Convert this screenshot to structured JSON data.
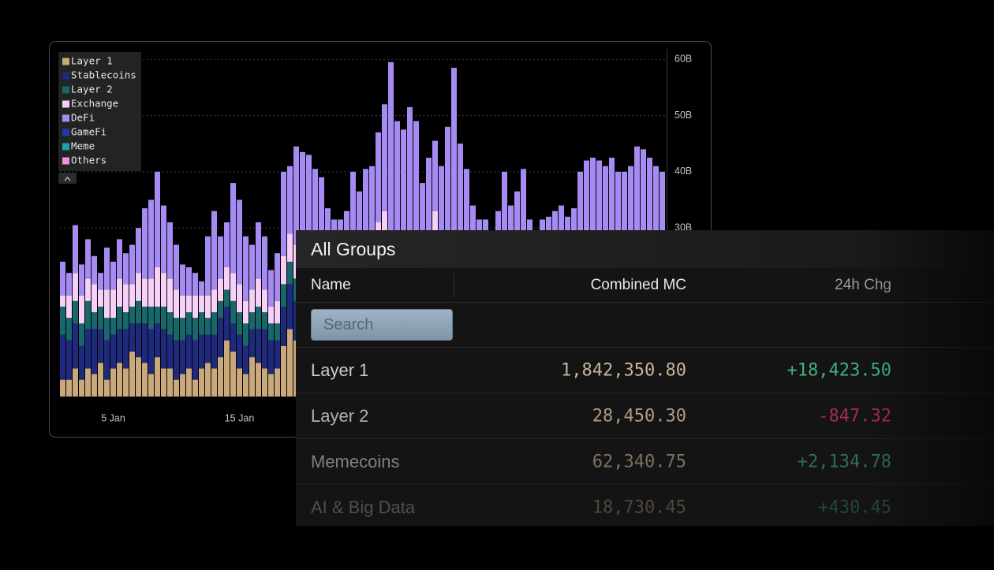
{
  "chart_data": {
    "type": "bar",
    "stacked": true,
    "legend": "upper left",
    "grid": true,
    "ylim": [
      0,
      62
    ],
    "yticks": [
      {
        "value": 30,
        "label": "30B"
      },
      {
        "value": 40,
        "label": "40B"
      },
      {
        "value": 50,
        "label": "50B"
      },
      {
        "value": 60,
        "label": "60B"
      }
    ],
    "categories": [
      null,
      null,
      null,
      null,
      null,
      null,
      null,
      null,
      "5 Jan",
      null,
      null,
      null,
      null,
      null,
      null,
      null,
      null,
      null,
      null,
      null,
      null,
      null,
      null,
      null,
      null,
      null,
      null,
      null,
      "15 Jan",
      null,
      null,
      null,
      null,
      null,
      null,
      null,
      null,
      null,
      null,
      null,
      null,
      null,
      null,
      null,
      null,
      null,
      null,
      null,
      null,
      null,
      null,
      null,
      null,
      null,
      null,
      null,
      null,
      null,
      null,
      null,
      null,
      null,
      null,
      null,
      null,
      null,
      null,
      null,
      null,
      null,
      null,
      null,
      null,
      null,
      null,
      null,
      null,
      null,
      null,
      null,
      null,
      null,
      null,
      null,
      null,
      null,
      null,
      null,
      null,
      null,
      null,
      null,
      null,
      null,
      null,
      null
    ],
    "series": [
      {
        "name": "Layer 1",
        "color": "#c9a97c",
        "values": [
          3,
          3,
          5,
          3,
          5,
          4,
          6,
          3,
          5,
          6,
          5,
          8,
          7,
          6,
          4,
          7,
          5,
          5,
          3,
          4,
          5,
          3,
          5,
          6,
          5,
          7,
          10,
          8,
          5,
          4,
          7,
          6,
          5,
          4,
          5,
          9,
          12,
          10,
          8,
          9,
          8,
          7,
          7,
          6,
          6,
          8,
          7,
          8,
          9,
          9,
          10,
          12,
          9,
          10,
          11,
          9,
          8,
          9,
          10,
          11,
          8,
          7,
          6,
          6,
          6,
          5,
          7,
          6,
          8,
          7,
          6,
          6,
          5,
          6,
          6,
          5,
          6,
          7,
          8,
          8,
          7,
          8,
          9,
          8,
          8,
          7,
          8,
          9,
          10,
          9,
          8,
          8,
          9,
          8,
          7,
          8
        ]
      },
      {
        "name": "Stablecoins",
        "color": "#1f2a7c",
        "values": [
          8,
          7,
          8,
          6,
          7,
          8,
          6,
          7,
          6,
          6,
          7,
          5,
          6,
          7,
          8,
          6,
          7,
          6,
          7,
          6,
          6,
          7,
          6,
          5,
          6,
          7,
          6,
          5,
          6,
          5,
          5,
          6,
          7,
          6,
          5,
          7,
          8,
          7,
          6,
          7,
          6,
          5,
          5,
          6,
          6,
          7,
          7,
          6,
          8,
          9,
          9,
          10,
          8,
          7,
          8,
          9,
          7,
          7,
          8,
          9,
          7,
          6,
          6,
          5,
          6,
          5,
          6,
          6,
          7,
          6,
          5,
          5,
          6,
          6,
          5,
          6,
          6,
          6,
          7,
          6,
          6,
          7,
          7,
          7,
          6,
          6,
          7,
          7,
          7,
          6,
          7,
          7,
          6,
          6,
          6,
          6
        ]
      },
      {
        "name": "Layer 2",
        "color": "#17676b",
        "values": [
          5,
          4,
          4,
          4,
          5,
          3,
          4,
          4,
          3,
          4,
          3,
          3,
          4,
          3,
          4,
          3,
          4,
          4,
          4,
          4,
          4,
          4,
          4,
          3,
          4,
          3,
          3,
          4,
          4,
          4,
          3,
          4,
          3,
          3,
          3,
          4,
          4,
          4,
          4,
          4,
          4,
          4,
          3,
          3,
          4,
          4,
          4,
          4,
          5,
          5,
          5,
          5,
          5,
          5,
          4,
          4,
          4,
          5,
          5,
          6,
          4,
          4,
          4,
          4,
          4,
          3,
          4,
          4,
          4,
          4,
          3,
          4,
          4,
          4,
          4,
          4,
          4,
          4,
          4,
          4,
          4,
          4,
          4,
          4,
          4,
          4,
          4,
          4,
          4,
          4,
          4,
          4,
          4,
          4,
          4,
          4
        ]
      },
      {
        "name": "Exchange",
        "color": "#f6d0f6",
        "values": [
          2,
          4,
          5,
          5,
          4,
          5,
          3,
          5,
          5,
          5,
          5,
          4,
          5,
          5,
          5,
          7,
          6,
          6,
          5,
          4,
          3,
          4,
          3,
          4,
          4,
          4,
          4,
          5,
          5,
          4,
          4,
          5,
          4,
          3,
          4,
          5,
          5,
          6,
          6,
          6,
          6,
          5,
          4,
          4,
          4,
          5,
          5,
          5,
          6,
          6,
          7,
          6,
          6,
          6,
          6,
          6,
          5,
          6,
          5,
          7,
          5,
          5,
          4,
          4,
          4,
          4,
          5,
          5,
          5,
          5,
          5,
          4,
          4,
          4,
          4,
          4,
          4,
          4,
          4,
          4,
          5,
          5,
          5,
          5,
          5,
          5,
          5,
          6,
          5,
          5,
          6,
          5,
          5,
          5,
          5,
          5
        ]
      },
      {
        "name": "DeFi",
        "color": "#a68cf2",
        "values": [
          6,
          4,
          8.5,
          5.5,
          7,
          5,
          3,
          7.5,
          5,
          7,
          5.5,
          7,
          8,
          12.5,
          14,
          17,
          12,
          10,
          8,
          5.5,
          5,
          4,
          2.5,
          10.5,
          14,
          7.5,
          8,
          16,
          15,
          11.5,
          8,
          10,
          9.5,
          6.5,
          8.5,
          15,
          12,
          17.5,
          19.5,
          17,
          16.5,
          18,
          14.5,
          12.5,
          11.5,
          9,
          17,
          13.5,
          12.5,
          12,
          16,
          19,
          31.5,
          21,
          18.5,
          23.5,
          25,
          11,
          14.5,
          12.5,
          17,
          26,
          38.5,
          26,
          20.5,
          17,
          9.5,
          10.5,
          5.5,
          11,
          21,
          15,
          17.5,
          20.5,
          12.5,
          10.5,
          11.5,
          11,
          10,
          12,
          10,
          9.5,
          15,
          18,
          19.5,
          20,
          17,
          16.5,
          14,
          16,
          16,
          20.5,
          20,
          19.5,
          19,
          17
        ]
      },
      {
        "name": "GameFi",
        "color": "#2338a8",
        "values": [
          0,
          0,
          0,
          0,
          0,
          0,
          0,
          0,
          0,
          0,
          0,
          0,
          0,
          0,
          0,
          0,
          0,
          0,
          0,
          0,
          0,
          0,
          0,
          0,
          0,
          0,
          0,
          0,
          0,
          0,
          0,
          0,
          0,
          0,
          0,
          0,
          0,
          0,
          0,
          0,
          0,
          0,
          0,
          0,
          0,
          0,
          0,
          0,
          0,
          0,
          0,
          0,
          0,
          0,
          0,
          0,
          0,
          0,
          0,
          0,
          0,
          0,
          0,
          0,
          0,
          0,
          0,
          0,
          0,
          0,
          0,
          0,
          0,
          0,
          0,
          0,
          0,
          0,
          0,
          0,
          0,
          0,
          0,
          0,
          0,
          0,
          0,
          0,
          0,
          0,
          0,
          0,
          0,
          0,
          0,
          0
        ]
      },
      {
        "name": "Meme",
        "color": "#1aa3a3",
        "values": [
          0,
          0,
          0,
          0,
          0,
          0,
          0,
          0,
          0,
          0,
          0,
          0,
          0,
          0,
          0,
          0,
          0,
          0,
          0,
          0,
          0,
          0,
          0,
          0,
          0,
          0,
          0,
          0,
          0,
          0,
          0,
          0,
          0,
          0,
          0,
          0,
          0,
          0,
          0,
          0,
          0,
          0,
          0,
          0,
          0,
          0,
          0,
          0,
          0,
          0,
          0,
          0,
          0,
          0,
          0,
          0,
          0,
          0,
          0,
          0,
          0,
          0,
          0,
          0,
          0,
          0,
          0,
          0,
          0,
          0,
          0,
          0,
          0,
          0,
          0,
          0,
          0,
          0,
          0,
          0,
          0,
          0,
          0,
          0,
          0,
          0,
          0,
          0,
          0,
          0,
          0,
          0,
          0,
          0,
          0,
          0
        ]
      },
      {
        "name": "Others",
        "color": "#ea92e4",
        "values": [
          0,
          0,
          0,
          0,
          0,
          0,
          0,
          0,
          0,
          0,
          0,
          0,
          0,
          0,
          0,
          0,
          0,
          0,
          0,
          0,
          0,
          0,
          0,
          0,
          0,
          0,
          0,
          0,
          0,
          0,
          0,
          0,
          0,
          0,
          0,
          0,
          0,
          0,
          0,
          0,
          0,
          0,
          0,
          0,
          0,
          0,
          0,
          0,
          0,
          0,
          0,
          0,
          0,
          0,
          0,
          0,
          0,
          0,
          0,
          0,
          0,
          0,
          0,
          0,
          0,
          0,
          0,
          0,
          0,
          0,
          0,
          0,
          0,
          0,
          0,
          0,
          0,
          0,
          0,
          0,
          0,
          0,
          0,
          0,
          0,
          0,
          0,
          0,
          0,
          0,
          0,
          0,
          0,
          0,
          0,
          0
        ]
      }
    ]
  },
  "table": {
    "title": "All Groups",
    "columns": [
      "Name",
      "Combined MC",
      "24h Chg"
    ],
    "search_placeholder": "Search",
    "rows": [
      [
        "Layer 1",
        "1,842,350.80",
        "+18,423.50"
      ],
      [
        "Layer 2",
        "28,450.30",
        "-847.32"
      ],
      [
        "Memecoins",
        "62,340.75",
        "+2,134.78"
      ],
      [
        "AI & Big Data",
        "18,730.45",
        "+430.45"
      ]
    ]
  }
}
